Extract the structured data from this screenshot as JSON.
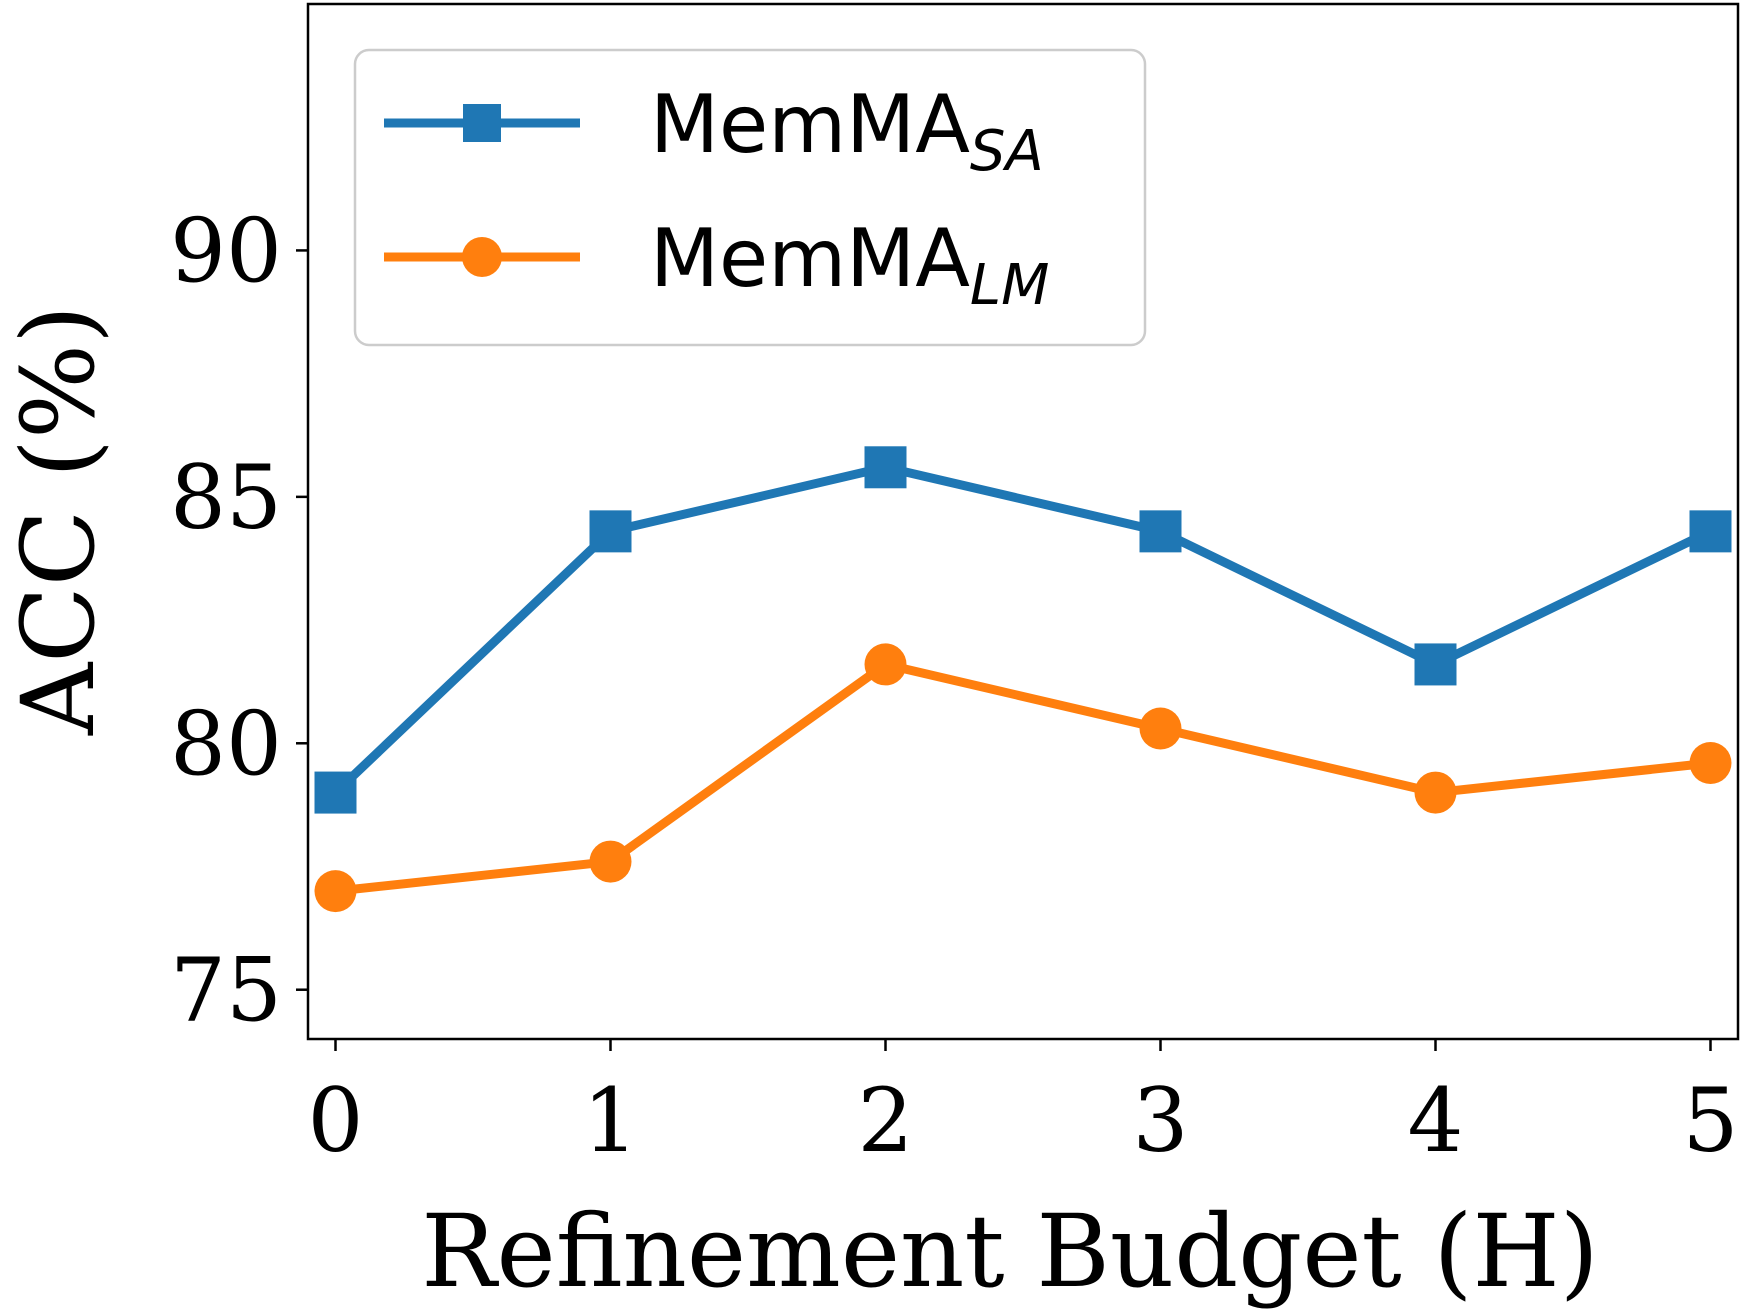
{
  "chart_data": {
    "type": "line",
    "xlabel": "Refinement Budget (H)",
    "ylabel": "ACC (%)",
    "x": [
      0,
      1,
      2,
      3,
      4,
      5
    ],
    "x_ticks": [
      "0",
      "1",
      "2",
      "3",
      "4",
      "5"
    ],
    "y_ticks": [
      "75",
      "80",
      "85",
      "90"
    ],
    "y_tick_values": [
      75,
      80,
      85,
      90
    ],
    "xlim": [
      -0.1,
      5.1
    ],
    "ylim": [
      74.0,
      95.0
    ],
    "grid": false,
    "legend_position": "upper-left",
    "series": [
      {
        "name": "MemMA",
        "subscript": "SA",
        "color": "#1f77b4",
        "marker": "square",
        "values": [
          79.0,
          84.3,
          85.6,
          84.3,
          81.6,
          84.3
        ]
      },
      {
        "name": "MemMA",
        "subscript": "LM",
        "color": "#ff7f0e",
        "marker": "circle",
        "values": [
          77.0,
          77.6,
          81.6,
          80.3,
          79.0,
          79.6
        ]
      }
    ]
  }
}
